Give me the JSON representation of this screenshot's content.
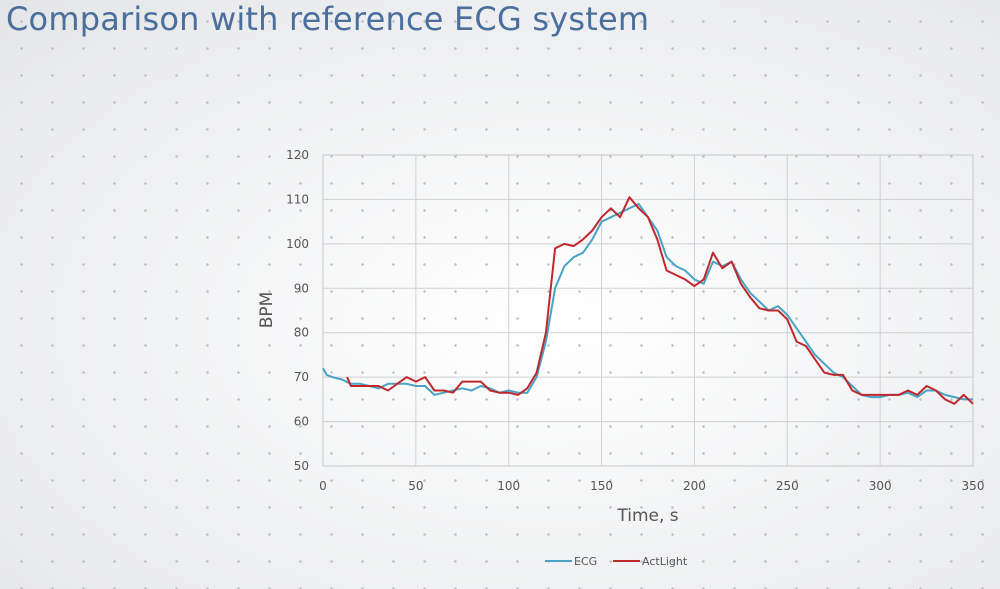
{
  "title": "Comparison with reference ECG system",
  "chart_data": {
    "type": "line",
    "title": "",
    "xlabel": "Time, s",
    "ylabel": "BPM",
    "xlim": [
      0,
      350
    ],
    "ylim": [
      50,
      120
    ],
    "xticks": [
      0,
      50,
      100,
      150,
      200,
      250,
      300,
      350
    ],
    "yticks": [
      50,
      60,
      70,
      80,
      90,
      100,
      110,
      120
    ],
    "grid": true,
    "legend_position": "bottom",
    "series": [
      {
        "name": "ECG",
        "color": "#4aa3c4",
        "x": [
          0,
          2,
          5,
          10,
          15,
          20,
          25,
          30,
          35,
          40,
          45,
          50,
          55,
          60,
          65,
          70,
          75,
          80,
          85,
          90,
          95,
          100,
          105,
          110,
          115,
          120,
          125,
          130,
          135,
          140,
          145,
          150,
          155,
          160,
          165,
          170,
          175,
          180,
          185,
          190,
          195,
          200,
          205,
          210,
          215,
          220,
          225,
          230,
          235,
          240,
          245,
          250,
          255,
          260,
          265,
          270,
          275,
          280,
          285,
          290,
          295,
          300,
          305,
          310,
          315,
          320,
          325,
          330,
          335,
          340,
          345,
          350
        ],
        "y": [
          72,
          70.5,
          70,
          69.5,
          68.5,
          68.5,
          68,
          67.5,
          68.5,
          68.5,
          68.5,
          68,
          68,
          66,
          66.5,
          67,
          67.5,
          67,
          68,
          67.5,
          66.5,
          67,
          66.5,
          66.5,
          70,
          78,
          90,
          95,
          97,
          98,
          101,
          105,
          106,
          107,
          108,
          109,
          106,
          103,
          97,
          95,
          94,
          92,
          91,
          96,
          95,
          96,
          92,
          89,
          87,
          85,
          86,
          84,
          81,
          78,
          75,
          73,
          71,
          70,
          68,
          66,
          65.5,
          65.5,
          66,
          66,
          66.5,
          65.5,
          67,
          67,
          66,
          65.5,
          65,
          65
        ]
      },
      {
        "name": "ActLight",
        "color": "#c0282d",
        "x": [
          13,
          15,
          20,
          25,
          30,
          35,
          40,
          45,
          50,
          55,
          60,
          65,
          70,
          75,
          80,
          85,
          90,
          95,
          100,
          105,
          110,
          115,
          120,
          125,
          130,
          135,
          140,
          145,
          150,
          155,
          160,
          165,
          170,
          175,
          180,
          185,
          190,
          195,
          200,
          205,
          210,
          215,
          220,
          225,
          230,
          235,
          240,
          245,
          250,
          255,
          260,
          265,
          270,
          275,
          280,
          285,
          290,
          295,
          300,
          305,
          310,
          315,
          320,
          325,
          330,
          335,
          340,
          345,
          350
        ],
        "y": [
          70,
          68,
          68,
          68,
          68,
          67,
          68.5,
          70,
          69,
          70,
          67,
          67,
          66.5,
          69,
          69,
          69,
          67,
          66.5,
          66.5,
          66,
          67.5,
          71,
          80,
          99,
          100,
          99.5,
          101,
          103,
          106,
          108,
          106,
          110.5,
          108,
          106,
          101,
          94,
          93,
          92,
          90.5,
          92,
          98,
          94.5,
          96,
          91,
          88,
          85.5,
          85,
          85,
          83,
          78,
          77,
          74,
          71,
          70.5,
          70.5,
          67,
          66,
          66,
          66,
          66,
          66,
          67,
          66,
          68,
          67,
          65,
          64,
          66,
          64
        ]
      }
    ]
  }
}
